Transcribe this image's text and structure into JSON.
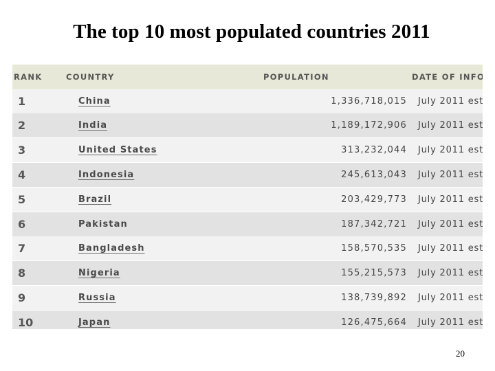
{
  "slide": {
    "title": "The top 10 most populated countries 2011",
    "page_number": "20"
  },
  "table": {
    "headers": {
      "rank": "RANK",
      "country": "COUNTRY",
      "population": "POPULATION",
      "date": "DATE OF INFO"
    },
    "rows": [
      {
        "rank": "1",
        "country": "China",
        "population": "1,336,718,015",
        "date": "July 2011 est.",
        "linked": true
      },
      {
        "rank": "2",
        "country": "India",
        "population": "1,189,172,906",
        "date": "July 2011 est.",
        "linked": true
      },
      {
        "rank": "3",
        "country": "United States",
        "population": "313,232,044",
        "date": "July 2011 est.",
        "linked": true
      },
      {
        "rank": "4",
        "country": "Indonesia",
        "population": "245,613,043",
        "date": "July 2011 est.",
        "linked": true
      },
      {
        "rank": "5",
        "country": "Brazil",
        "population": "203,429,773",
        "date": "July 2011 est.",
        "linked": true
      },
      {
        "rank": "6",
        "country": "Pakistan",
        "population": "187,342,721",
        "date": "July 2011 est.",
        "linked": false
      },
      {
        "rank": "7",
        "country": "Bangladesh",
        "population": "158,570,535",
        "date": "July 2011 est.",
        "linked": true
      },
      {
        "rank": "8",
        "country": "Nigeria",
        "population": "155,215,573",
        "date": "July 2011 est.",
        "linked": true
      },
      {
        "rank": "9",
        "country": "Russia",
        "population": "138,739,892",
        "date": "July 2011 est.",
        "linked": true
      },
      {
        "rank": "10",
        "country": "Japan",
        "population": "126,475,664",
        "date": "July 2011 est.",
        "linked": true
      }
    ]
  },
  "colors": {
    "header_background": "#e8e8d8",
    "row_light": "#f2f2f2",
    "row_dark": "#e2e2e2"
  }
}
